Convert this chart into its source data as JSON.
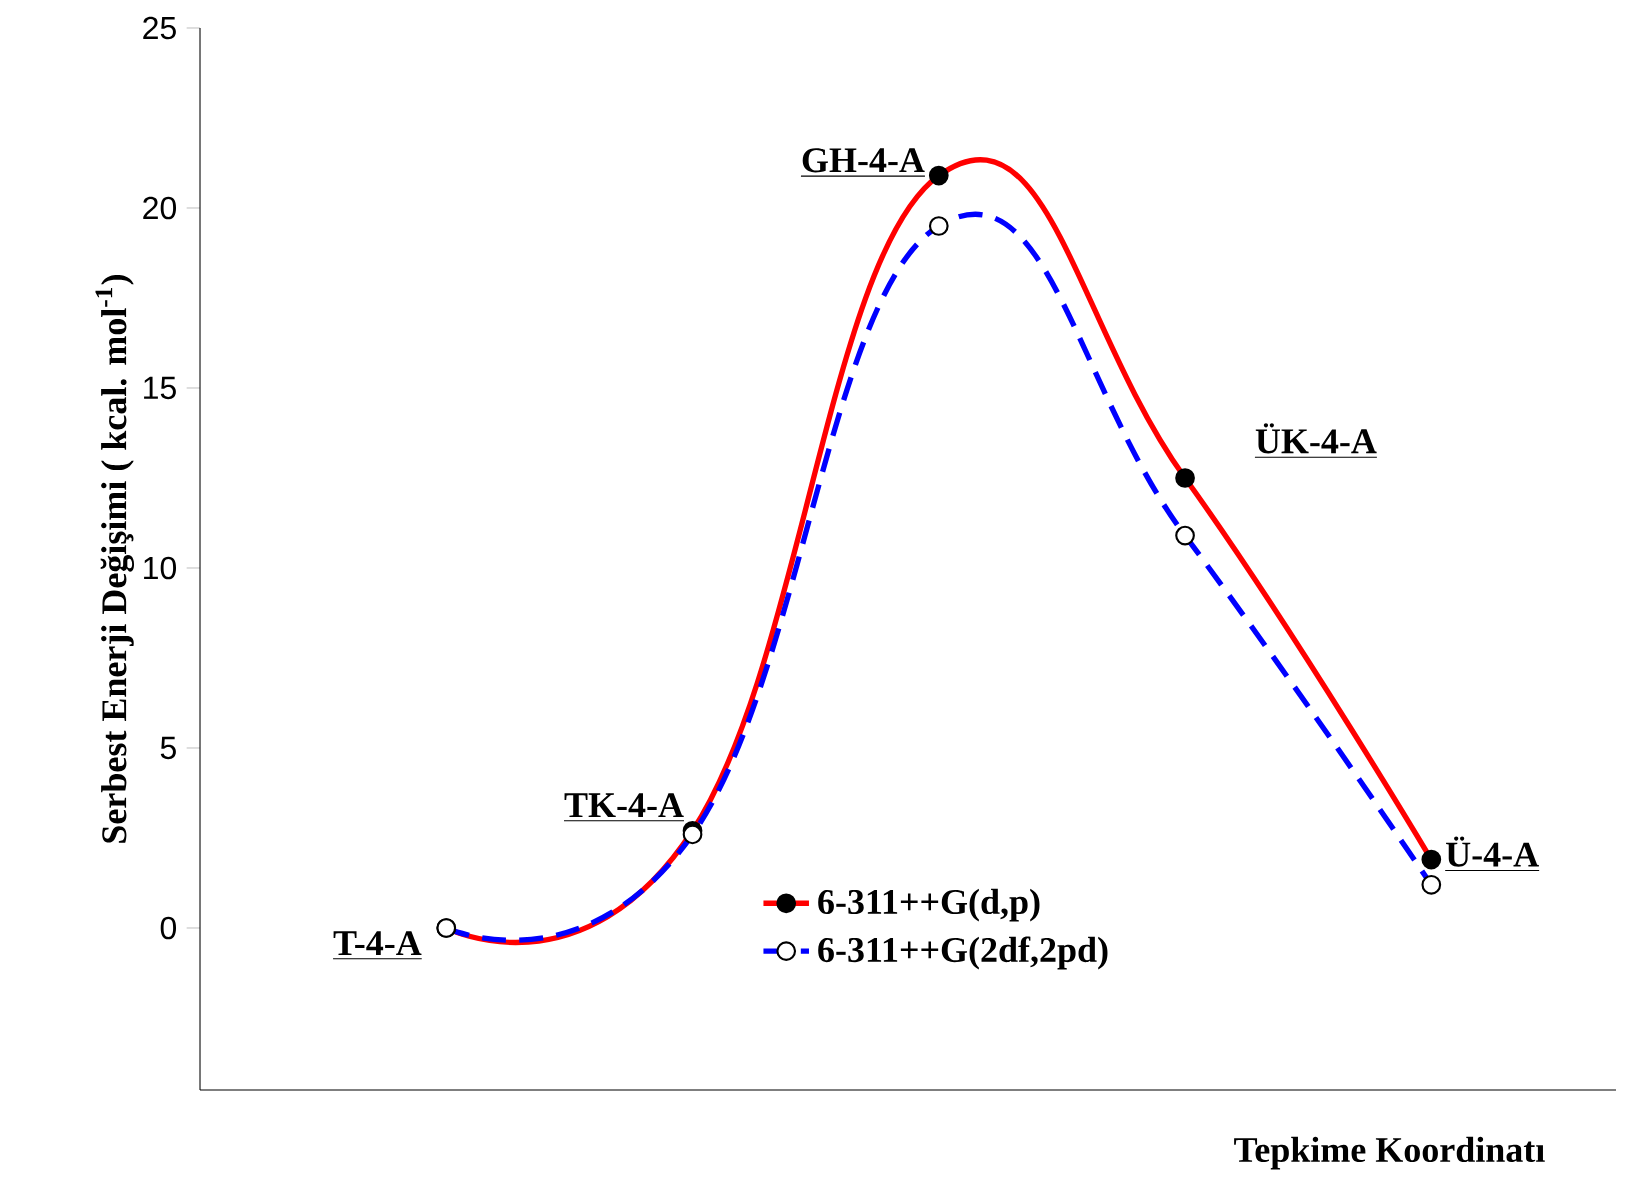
{
  "chart_data": {
    "type": "line",
    "xlabel": "Tepkime Koordinatı",
    "ylabel": "Serbest Enerji Değişimi (  kcal. mol$^{-1}$)",
    "categories": [
      null,
      null,
      null,
      null,
      null
    ],
    "series": [
      {
        "name": "6-311++G(d,p)",
        "color": "#ff0000",
        "values": [
          0,
          2.7,
          20.9,
          12.5,
          1.9
        ],
        "line_style": "solid"
      },
      {
        "name": "6-311++G(2df,2pd)",
        "color": "#0000ff",
        "values": [
          0,
          2.6,
          19.5,
          10.9,
          1.2
        ],
        "line_style": "dashed"
      }
    ],
    "annotations": [
      "T-4-A",
      "TK-4-A",
      "GH-4-A",
      "ÜK-4-A",
      "Ü-4-A"
    ],
    "ylim": [
      -4.5,
      25
    ],
    "yticks": [
      0,
      5,
      10,
      15,
      20,
      25
    ],
    "tick_labels": "y",
    "marker": "circle",
    "legend": "bottom",
    "grid": false
  }
}
